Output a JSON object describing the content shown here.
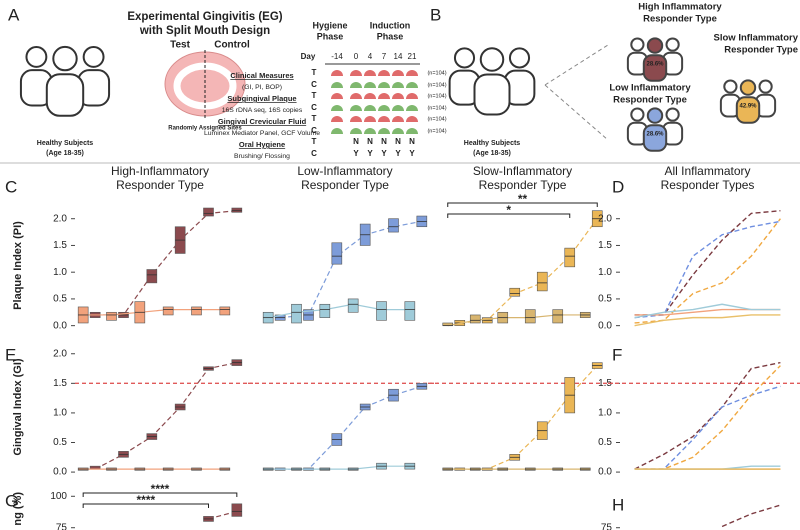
{
  "schematic_a": {
    "label": "A",
    "title": "Experimental Gingivitis (EG)",
    "subtitle": "with Split Mouth Design",
    "test": "Test",
    "control": "Control",
    "sites": "Randomly Assigned Sites",
    "subjects": "Healthy Subjects",
    "age": "(Age 18-35)",
    "phases": [
      [
        "Hygiene",
        "Phase"
      ],
      [
        "Induction",
        "Phase"
      ]
    ],
    "day": "Day",
    "days": [
      "-14",
      "0",
      "4",
      "7",
      "14",
      "21"
    ],
    "rows": [
      {
        "heading": "Clinical Measures",
        "detail": "(GI, PI, BOP)",
        "marks": [
          "T",
          "C"
        ],
        "n": [
          "(n=104)",
          "(n=104)"
        ]
      },
      {
        "heading": "Subgingival Plaque",
        "detail": "16S rDNA seq, 16S copies",
        "marks": [
          "T",
          "C"
        ],
        "n": [
          "(n=104)",
          "(n=104)"
        ]
      },
      {
        "heading": "Gingival Crevicular Fluid",
        "detail": "Luminex Mediator Panel, GCF Volume",
        "marks": [
          "T",
          "C"
        ],
        "n": [
          "(n=104)",
          "(n=104)"
        ]
      },
      {
        "heading": "Oral Hygiene",
        "detail": "Brushing/ Flossing",
        "marks": [
          "T",
          "C"
        ],
        "compliance": [
          [
            "N",
            "N",
            "N",
            "N",
            "N"
          ],
          [
            "Y",
            "Y",
            "Y",
            "Y",
            "Y"
          ]
        ]
      }
    ]
  },
  "schematic_b": {
    "label": "B",
    "subjects": "Healthy Subjects",
    "age": "(Age 18-35)",
    "types": [
      {
        "name": [
          "High Inflammatory",
          "Responder Type"
        ],
        "share": "28.6%",
        "color": "#8b4a4e"
      },
      {
        "name": [
          "Slow Inflammatory",
          "Responder Type"
        ],
        "share": "42.9%",
        "color": "#eab656"
      },
      {
        "name": [
          "Low Inflammatory",
          "Responder Type"
        ],
        "share": "28.6%",
        "color": "#8ba6dc"
      }
    ]
  },
  "chart_data": [
    {
      "type": "box",
      "label": "C",
      "title": [
        "High-Inflammatory",
        "Responder Type"
      ],
      "title_color": "#8b4a4e",
      "ylabel": "Plaque Index (PI)",
      "categories": [
        null,
        null,
        null,
        null,
        null,
        null
      ],
      "ylim": [
        -0.1,
        2.35
      ],
      "yticks": [
        {
          "value": 0,
          "label": "0.0"
        },
        {
          "value": 0.5,
          "label": "0.5"
        },
        {
          "value": 1,
          "label": "1.0"
        },
        {
          "value": 1.5,
          "label": "1.5"
        },
        {
          "value": 2,
          "label": "2.0"
        }
      ],
      "series": [
        {
          "color": "#8b4a4e",
          "dash": true,
          "values": [
            0.2,
            0.2,
            0.95,
            1.6,
            2.1,
            2.15
          ],
          "q1": [
            0.15,
            0.15,
            0.8,
            1.35,
            2.05,
            2.12
          ],
          "q3": [
            0.25,
            0.25,
            1.05,
            1.85,
            2.2,
            2.2
          ]
        },
        {
          "color": "#f2a27c",
          "dash": false,
          "values": [
            0.2,
            0.2,
            0.25,
            0.3,
            0.3,
            0.3
          ],
          "q1": [
            0.05,
            0.1,
            0.05,
            0.2,
            0.2,
            0.2
          ],
          "q3": [
            0.35,
            0.25,
            0.45,
            0.35,
            0.35,
            0.35
          ]
        }
      ]
    },
    {
      "type": "box",
      "title": [
        "Low-Inflammatory",
        "Responder Type"
      ],
      "title_color": "#8fa8e0",
      "categories": [
        null,
        null,
        null,
        null,
        null,
        null
      ],
      "ylim": [
        -0.1,
        2.35
      ],
      "series": [
        {
          "color": "#7d9cd9",
          "dash": true,
          "values": [
            0.15,
            0.2,
            1.3,
            1.7,
            1.85,
            1.95
          ],
          "q1": [
            0.1,
            0.1,
            1.15,
            1.5,
            1.75,
            1.85
          ],
          "q3": [
            0.2,
            0.3,
            1.55,
            1.9,
            2.0,
            2.05
          ]
        },
        {
          "color": "#9fcbd9",
          "dash": false,
          "values": [
            0.15,
            0.25,
            0.3,
            0.4,
            0.3,
            0.3
          ],
          "q1": [
            0.05,
            0.05,
            0.15,
            0.25,
            0.1,
            0.1
          ],
          "q3": [
            0.25,
            0.4,
            0.4,
            0.5,
            0.45,
            0.45
          ]
        }
      ]
    },
    {
      "type": "box",
      "title": [
        "Slow-Inflammatory",
        "Responder Type"
      ],
      "title_color": "#f0b955",
      "categories": [
        null,
        null,
        null,
        null,
        null,
        null
      ],
      "ylim": [
        -0.1,
        2.35
      ],
      "annotations": [
        {
          "text": "*",
          "between": [
            0,
            4
          ]
        },
        {
          "text": "**",
          "between": [
            0,
            5
          ]
        }
      ],
      "series": [
        {
          "color": "#eab656",
          "dash": true,
          "values": [
            0.05,
            0.1,
            0.6,
            0.8,
            1.3,
            2.0
          ],
          "q1": [
            0.0,
            0.05,
            0.55,
            0.65,
            1.1,
            1.85
          ],
          "q3": [
            0.1,
            0.15,
            0.7,
            1.0,
            1.45,
            2.15
          ]
        },
        {
          "color": "#d8b56f",
          "dash": false,
          "values": [
            0.0,
            0.1,
            0.15,
            0.15,
            0.2,
            0.2
          ],
          "q1": [
            0.0,
            0.05,
            0.05,
            0.05,
            0.05,
            0.15
          ],
          "q3": [
            0.05,
            0.2,
            0.25,
            0.3,
            0.3,
            0.25
          ]
        }
      ]
    },
    {
      "type": "line",
      "label": "D",
      "title": [
        "All Inflammatory",
        "Responder Types"
      ],
      "title_color": "#111111",
      "categories": [
        null,
        null,
        null,
        null,
        null,
        null
      ],
      "ylim": [
        -0.1,
        2.35
      ],
      "yticks": [
        {
          "value": 0,
          "label": "0.0"
        },
        {
          "value": 0.5,
          "label": "0.5"
        },
        {
          "value": 1,
          "label": "1.0"
        },
        {
          "value": 1.5,
          "label": "1.5"
        },
        {
          "value": 2,
          "label": "2.0"
        }
      ],
      "series": [
        {
          "color": "#7b3a40",
          "dash": true,
          "values": [
            0.2,
            0.2,
            0.95,
            1.6,
            2.1,
            2.15
          ]
        },
        {
          "color": "#6f8fe0",
          "dash": true,
          "values": [
            0.15,
            0.2,
            1.3,
            1.7,
            1.85,
            1.95
          ]
        },
        {
          "color": "#f0a840",
          "dash": true,
          "values": [
            0.05,
            0.1,
            0.6,
            0.8,
            1.3,
            2.0
          ]
        },
        {
          "color": "#f2a27c",
          "dash": false,
          "values": [
            0.2,
            0.2,
            0.25,
            0.3,
            0.3,
            0.3
          ]
        },
        {
          "color": "#9fcbd9",
          "dash": false,
          "values": [
            0.15,
            0.25,
            0.3,
            0.4,
            0.3,
            0.3
          ]
        },
        {
          "color": "#e9c06a",
          "dash": false,
          "values": [
            0.0,
            0.1,
            0.15,
            0.15,
            0.2,
            0.2
          ]
        }
      ]
    },
    {
      "type": "box",
      "label": "E",
      "ylabel": "Gingival Index (GI)",
      "categories": [
        null,
        null,
        null,
        null,
        null,
        null
      ],
      "ylim": [
        -0.1,
        2.3
      ],
      "refline": 1.5,
      "refline_color": "#e05a5a",
      "yticks": [
        {
          "value": 0,
          "label": "0.0"
        },
        {
          "value": 0.5,
          "label": "0.5"
        },
        {
          "value": 1,
          "label": "1.0"
        },
        {
          "value": 1.5,
          "label": "1.5"
        },
        {
          "value": 2,
          "label": "2.0"
        }
      ],
      "series": [
        {
          "color": "#8b4a4e",
          "dash": true,
          "values": [
            0.05,
            0.3,
            0.6,
            1.1,
            1.75,
            1.85
          ],
          "q1": [
            0.05,
            0.25,
            0.55,
            1.05,
            1.72,
            1.8
          ],
          "q3": [
            0.1,
            0.35,
            0.65,
            1.15,
            1.78,
            1.9
          ]
        },
        {
          "color": "#f2a27c",
          "dash": false,
          "values": [
            0.05,
            0.05,
            0.05,
            0.05,
            0.05,
            0.05
          ],
          "q1": [
            0.03,
            0.03,
            0.03,
            0.03,
            0.03,
            0.03
          ],
          "q3": [
            0.07,
            0.07,
            0.07,
            0.07,
            0.07,
            0.07
          ]
        }
      ]
    },
    {
      "type": "box",
      "categories": [
        null,
        null,
        null,
        null,
        null,
        null
      ],
      "ylim": [
        -0.1,
        2.3
      ],
      "refline": 1.5,
      "refline_color": "#e05a5a",
      "series": [
        {
          "color": "#7d9cd9",
          "dash": true,
          "values": [
            0.05,
            0.05,
            0.55,
            1.1,
            1.3,
            1.45
          ],
          "q1": [
            0.03,
            0.03,
            0.45,
            1.05,
            1.2,
            1.4
          ],
          "q3": [
            0.07,
            0.07,
            0.65,
            1.15,
            1.4,
            1.5
          ]
        },
        {
          "color": "#9fcbd9",
          "dash": false,
          "values": [
            0.05,
            0.05,
            0.05,
            0.05,
            0.1,
            0.1
          ],
          "q1": [
            0.03,
            0.03,
            0.03,
            0.03,
            0.05,
            0.05
          ],
          "q3": [
            0.07,
            0.07,
            0.07,
            0.07,
            0.15,
            0.15
          ]
        }
      ]
    },
    {
      "type": "box",
      "categories": [
        null,
        null,
        null,
        null,
        null,
        null
      ],
      "ylim": [
        -0.1,
        2.3
      ],
      "refline": 1.5,
      "refline_color": "#e05a5a",
      "series": [
        {
          "color": "#eab656",
          "dash": true,
          "values": [
            0.05,
            0.05,
            0.25,
            0.7,
            1.3,
            1.8
          ],
          "q1": [
            0.03,
            0.03,
            0.2,
            0.55,
            1.0,
            1.75
          ],
          "q3": [
            0.07,
            0.07,
            0.3,
            0.85,
            1.6,
            1.85
          ]
        },
        {
          "color": "#d8b56f",
          "dash": false,
          "values": [
            0.05,
            0.05,
            0.05,
            0.05,
            0.05,
            0.05
          ],
          "q1": [
            0.03,
            0.03,
            0.03,
            0.03,
            0.03,
            0.03
          ],
          "q3": [
            0.07,
            0.07,
            0.07,
            0.07,
            0.07,
            0.07
          ]
        }
      ]
    },
    {
      "type": "line",
      "label": "F",
      "categories": [
        null,
        null,
        null,
        null,
        null,
        null
      ],
      "ylim": [
        -0.1,
        2.3
      ],
      "refline": 1.5,
      "refline_color": "#e05a5a",
      "yticks": [
        {
          "value": 0,
          "label": "0.0"
        },
        {
          "value": 0.5,
          "label": "0.5"
        },
        {
          "value": 1,
          "label": "1.0"
        },
        {
          "value": 1.5,
          "label": "1.5"
        }
      ],
      "series": [
        {
          "color": "#7b3a40",
          "dash": true,
          "values": [
            0.05,
            0.3,
            0.6,
            1.1,
            1.75,
            1.85
          ]
        },
        {
          "color": "#6f8fe0",
          "dash": true,
          "values": [
            0.05,
            0.05,
            0.55,
            1.1,
            1.3,
            1.45
          ]
        },
        {
          "color": "#f0a840",
          "dash": true,
          "values": [
            0.05,
            0.05,
            0.25,
            0.7,
            1.3,
            1.8
          ]
        },
        {
          "color": "#f2a27c",
          "dash": false,
          "values": [
            0.05,
            0.05,
            0.05,
            0.05,
            0.05,
            0.05
          ]
        },
        {
          "color": "#9fcbd9",
          "dash": false,
          "values": [
            0.05,
            0.05,
            0.05,
            0.05,
            0.1,
            0.1
          ]
        },
        {
          "color": "#e9c06a",
          "dash": false,
          "values": [
            0.05,
            0.05,
            0.05,
            0.05,
            0.05,
            0.05
          ]
        }
      ]
    },
    {
      "type": "box",
      "label": "G",
      "ylabel": "ng (%)",
      "categories": [
        null,
        null,
        null,
        null,
        null,
        null
      ],
      "ylim": [
        70,
        105
      ],
      "yticks": [
        75,
        100
      ],
      "annotations": [
        {
          "text": "****",
          "between": [
            0,
            4
          ]
        },
        {
          "text": "****",
          "between": [
            0,
            5
          ]
        }
      ],
      "series": [
        {
          "color": "#8b4a4e",
          "dash": true,
          "values": [
            null,
            null,
            null,
            null,
            82,
            88
          ],
          "q1": [
            null,
            null,
            null,
            null,
            80,
            84
          ],
          "q3": [
            null,
            null,
            null,
            null,
            84,
            94
          ]
        }
      ]
    },
    {
      "type": "line",
      "label": "H",
      "categories": [
        null,
        null,
        null,
        null,
        null,
        null
      ],
      "ylim": [
        70,
        105
      ],
      "yticks": [
        75
      ],
      "series": [
        {
          "color": "#7b3a40",
          "dash": true,
          "values": [
            null,
            null,
            null,
            76,
            86,
            93
          ]
        }
      ]
    }
  ]
}
